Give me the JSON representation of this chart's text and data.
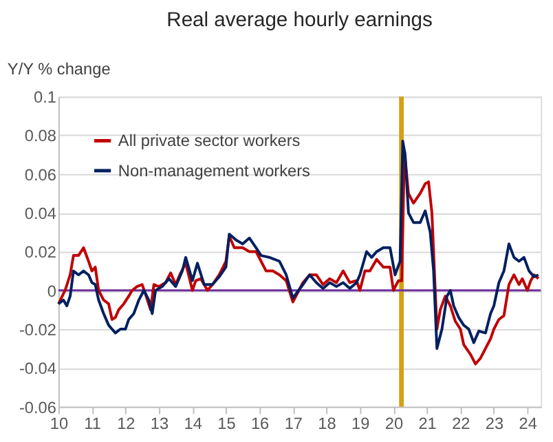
{
  "chart_data": {
    "type": "line",
    "title": "Real average hourly earnings",
    "ylabel": "Y/Y % change",
    "xlim": [
      2010,
      2024.4
    ],
    "ylim": [
      -0.06,
      0.1
    ],
    "yticks": [
      -0.06,
      -0.04,
      -0.02,
      0,
      0.02,
      0.04,
      0.06,
      0.08,
      0.1
    ],
    "xticks": [
      {
        "value": 2010,
        "label": "10"
      },
      {
        "value": 2011,
        "label": "11"
      },
      {
        "value": 2012,
        "label": "12"
      },
      {
        "value": 2013,
        "label": "13"
      },
      {
        "value": 2014,
        "label": "14"
      },
      {
        "value": 2015,
        "label": "15"
      },
      {
        "value": 2016,
        "label": "16"
      },
      {
        "value": 2017,
        "label": "17"
      },
      {
        "value": 2018,
        "label": "18"
      },
      {
        "value": 2019,
        "label": "19"
      },
      {
        "value": 2020,
        "label": "20"
      },
      {
        "value": 2021,
        "label": "21"
      },
      {
        "value": 2022,
        "label": "22"
      },
      {
        "value": 2023,
        "label": "23"
      },
      {
        "value": 2024,
        "label": "24"
      }
    ],
    "grid": "y",
    "legend": "top left",
    "tick_labels": true,
    "ref_lines": [
      {
        "axis": "y",
        "value": 0,
        "color": "#7030a0"
      }
    ],
    "bands": [
      {
        "axis": "x",
        "from": 2020.17,
        "to": 2020.31,
        "color": "#d4a017"
      }
    ],
    "series": [
      {
        "name": "All private sector workers",
        "color": "#c00000",
        "x": [
          2010.0,
          2010.2,
          2010.35,
          2010.45,
          2010.6,
          2010.75,
          2010.9,
          2011.0,
          2011.1,
          2011.2,
          2011.35,
          2011.5,
          2011.6,
          2011.7,
          2011.8,
          2011.95,
          2012.1,
          2012.2,
          2012.35,
          2012.5,
          2012.6,
          2012.75,
          2012.85,
          2013.0,
          2013.2,
          2013.35,
          2013.5,
          2013.65,
          2013.8,
          2014.0,
          2014.1,
          2014.25,
          2014.45,
          2014.6,
          2014.8,
          2015.0,
          2015.1,
          2015.25,
          2015.5,
          2015.7,
          2015.9,
          2016.05,
          2016.2,
          2016.4,
          2016.6,
          2016.8,
          2017.0,
          2017.3,
          2017.5,
          2017.7,
          2017.9,
          2018.1,
          2018.3,
          2018.5,
          2018.7,
          2018.9,
          2019.0,
          2019.15,
          2019.3,
          2019.5,
          2019.7,
          2019.9,
          2020.0,
          2020.15,
          2020.25,
          2020.33,
          2020.45,
          2020.6,
          2020.8,
          2020.95,
          2021.05,
          2021.15,
          2021.25,
          2021.3,
          2021.4,
          2021.55,
          2021.7,
          2021.85,
          2022.0,
          2022.1,
          2022.3,
          2022.45,
          2022.6,
          2022.75,
          2022.9,
          2023.0,
          2023.15,
          2023.3,
          2023.45,
          2023.6,
          2023.75,
          2023.85,
          2024.0,
          2024.1,
          2024.2,
          2024.33
        ],
        "values": [
          -0.007,
          0.0,
          0.008,
          0.018,
          0.018,
          0.022,
          0.015,
          0.01,
          0.012,
          0.0,
          -0.005,
          -0.007,
          -0.015,
          -0.014,
          -0.01,
          -0.007,
          -0.003,
          0.0,
          0.002,
          0.003,
          -0.002,
          -0.01,
          0.003,
          0.002,
          0.004,
          0.009,
          0.003,
          0.009,
          0.014,
          0.0,
          0.005,
          0.006,
          0.0,
          0.003,
          0.008,
          0.015,
          0.028,
          0.022,
          0.022,
          0.02,
          0.02,
          0.015,
          0.01,
          0.01,
          0.008,
          0.005,
          -0.006,
          0.004,
          0.008,
          0.008,
          0.003,
          0.006,
          0.004,
          0.01,
          0.004,
          0.005,
          0.0,
          0.01,
          0.01,
          0.016,
          0.012,
          0.012,
          0.0,
          0.005,
          0.005,
          0.072,
          0.05,
          0.045,
          0.05,
          0.055,
          0.056,
          0.04,
          0.0,
          -0.02,
          -0.01,
          -0.003,
          -0.008,
          -0.016,
          -0.02,
          -0.028,
          -0.033,
          -0.038,
          -0.035,
          -0.03,
          -0.025,
          -0.02,
          -0.015,
          -0.013,
          0.003,
          0.008,
          0.003,
          0.006,
          0.0,
          0.005,
          0.008,
          0.006
        ]
      },
      {
        "name": "Non-management workers",
        "color": "#002060",
        "x": [
          2010.0,
          2010.15,
          2010.25,
          2010.35,
          2010.45,
          2010.6,
          2010.75,
          2010.9,
          2011.0,
          2011.1,
          2011.2,
          2011.35,
          2011.5,
          2011.6,
          2011.7,
          2011.85,
          2012.0,
          2012.1,
          2012.25,
          2012.4,
          2012.55,
          2012.7,
          2012.8,
          2012.9,
          2013.1,
          2013.3,
          2013.5,
          2013.7,
          2013.8,
          2014.0,
          2014.15,
          2014.35,
          2014.6,
          2014.8,
          2015.0,
          2015.1,
          2015.3,
          2015.5,
          2015.7,
          2015.9,
          2016.05,
          2016.3,
          2016.6,
          2016.8,
          2017.0,
          2017.3,
          2017.5,
          2017.7,
          2017.9,
          2018.1,
          2018.3,
          2018.5,
          2018.7,
          2018.9,
          2019.0,
          2019.2,
          2019.35,
          2019.5,
          2019.7,
          2019.9,
          2020.05,
          2020.2,
          2020.28,
          2020.35,
          2020.45,
          2020.6,
          2020.8,
          2020.95,
          2021.1,
          2021.2,
          2021.3,
          2021.45,
          2021.6,
          2021.7,
          2021.8,
          2021.95,
          2022.1,
          2022.25,
          2022.4,
          2022.55,
          2022.75,
          2022.9,
          2023.0,
          2023.15,
          2023.3,
          2023.45,
          2023.6,
          2023.75,
          2023.9,
          2024.05,
          2024.2,
          2024.33
        ],
        "values": [
          -0.007,
          -0.005,
          -0.008,
          -0.003,
          0.01,
          0.008,
          0.01,
          0.008,
          0.004,
          0.003,
          -0.005,
          -0.012,
          -0.018,
          -0.02,
          -0.022,
          -0.02,
          -0.02,
          -0.015,
          -0.012,
          -0.005,
          0.0,
          -0.005,
          -0.012,
          0.0,
          0.002,
          0.006,
          0.002,
          0.01,
          0.017,
          0.005,
          0.014,
          0.003,
          0.003,
          0.007,
          0.012,
          0.029,
          0.026,
          0.024,
          0.027,
          0.022,
          0.018,
          0.017,
          0.015,
          0.008,
          -0.004,
          0.003,
          0.008,
          0.004,
          0.001,
          0.004,
          0.002,
          0.004,
          0.001,
          0.004,
          0.008,
          0.02,
          0.017,
          0.02,
          0.022,
          0.022,
          0.008,
          0.015,
          0.077,
          0.07,
          0.04,
          0.035,
          0.035,
          0.041,
          0.03,
          0.01,
          -0.03,
          -0.02,
          -0.003,
          0.0,
          -0.008,
          -0.014,
          -0.018,
          -0.02,
          -0.027,
          -0.021,
          -0.022,
          -0.012,
          -0.008,
          0.004,
          0.01,
          0.024,
          0.017,
          0.015,
          0.017,
          0.01,
          0.007,
          0.008
        ]
      }
    ]
  }
}
